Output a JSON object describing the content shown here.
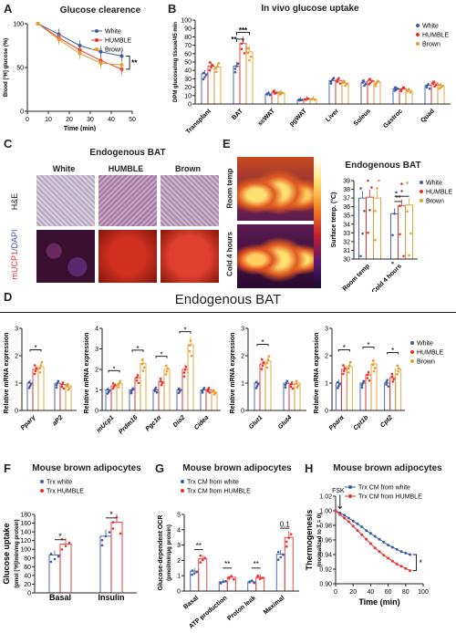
{
  "panels": {
    "A": {
      "label": "A",
      "title": "Glucose clearence",
      "ylabel": "Blood [³H] glucose (%)",
      "xlabel": "Time (min)",
      "legend": [
        "White",
        "HUMBLE",
        "Brown"
      ],
      "sig": "**"
    },
    "B": {
      "label": "B",
      "title": "In vivo glucose uptake",
      "ylabel": "DPM glucose/mg tissue/45 min",
      "legend": [
        "White",
        "HUMBLE",
        "Brown"
      ],
      "sig": [
        "***",
        "**"
      ]
    },
    "C": {
      "label": "C",
      "title": "Endogenous BAT",
      "cols": [
        "White",
        "HUMBLE",
        "Brown"
      ],
      "row1": "H&E",
      "row2a": "mUCP1",
      "row2b": "/DAPI"
    },
    "E": {
      "label": "E",
      "title": "Endogenous BAT",
      "row1": "Room temp",
      "row2": "Cold 4 hours",
      "cams": [
        "White",
        "HUMBLE",
        "Brown"
      ],
      "ylabel": "Surface temp. (°C)",
      "categories": [
        "Room temp",
        "Cold 4 hours"
      ],
      "legend": [
        "White",
        "HUMBLE",
        "Brown"
      ],
      "sig": [
        "*",
        "**"
      ]
    },
    "D": {
      "label": "D",
      "title": "Endogenous BAT",
      "ylabel": "Relative mRNA expression",
      "legend": [
        "White",
        "HUMBLE",
        "Brown"
      ],
      "groups": [
        {
          "genes": [
            "Pparγ",
            "aP2"
          ],
          "sig": [
            "*"
          ]
        },
        {
          "genes": [
            "mUcp1",
            "Prdm16",
            "Pgc1α",
            "Dio2",
            "Cidea"
          ],
          "sig": [
            "*",
            "*",
            "*",
            "*",
            "*",
            "*",
            "*",
            "*"
          ]
        },
        {
          "genes": [
            "Glut1",
            "Glut4"
          ],
          "sig": [
            "*",
            "*"
          ]
        },
        {
          "genes": [
            "Pparα",
            "Cpt1b",
            "Cpt2"
          ],
          "sig": [
            "*",
            "*",
            "*",
            "*",
            "*",
            "*"
          ]
        }
      ]
    },
    "F": {
      "label": "F",
      "title": "Mouse brown adipocytes",
      "legend": [
        "Trx white",
        "Trx HUMBLE"
      ],
      "ylabel1": "Glucose uptake",
      "ylabel2": "(pmol [³H]/min/mg protein)",
      "categories": [
        "Basal",
        "Insulin"
      ],
      "sig": [
        "*",
        "*"
      ]
    },
    "G": {
      "label": "G",
      "title": "Mouse brown adipocytes",
      "legend": [
        "Trx CM from white",
        "Trx CM from HUMBLE"
      ],
      "ylabel1": "Glucose-dependent OCR",
      "ylabel2": "(pmol/min/μg protein)",
      "categories": [
        "Basal",
        "ATP production",
        "Proton leak",
        "Maximal"
      ],
      "sig": [
        "**",
        "**",
        "**",
        "0.1"
      ]
    },
    "H": {
      "label": "H",
      "title": "Mouse brown adipocytes",
      "legend": [
        "Trx CM from white",
        "Trx CM from HUMBLE"
      ],
      "ylabel1": "Thermogenesis",
      "ylabel2": "(normalized to T = 0)",
      "xlabel": "Time (min)",
      "arrow": "FSK",
      "sig": "*"
    }
  },
  "colors": {
    "white": "#3b5ba5",
    "humble": "#e8322a",
    "brown": "#e0a030"
  },
  "chart_data": [
    {
      "type": "line",
      "panel": "A",
      "x": [
        5,
        15,
        25,
        35,
        45
      ],
      "series": [
        {
          "name": "White",
          "values": [
            100,
            88,
            75,
            68,
            63
          ]
        },
        {
          "name": "HUMBLE",
          "values": [
            100,
            84,
            70,
            58,
            48
          ]
        },
        {
          "name": "Brown",
          "values": [
            100,
            82,
            66,
            55,
            53
          ]
        }
      ],
      "xlim": [
        0,
        50
      ],
      "ylim": [
        0,
        100
      ],
      "xticks": [
        0,
        10,
        20,
        30,
        40,
        50
      ],
      "yticks": [
        0,
        50,
        100
      ]
    },
    {
      "type": "bar",
      "panel": "B",
      "categories": [
        "Transplant",
        "BAT",
        "scWAT",
        "pgWAT",
        "Liver",
        "Soleus",
        "Gastroc",
        "Quad"
      ],
      "series": [
        {
          "name": "White",
          "values": [
            36,
            45,
            12,
            5,
            28,
            26,
            18,
            22
          ]
        },
        {
          "name": "HUMBLE",
          "values": [
            45,
            72,
            14,
            6,
            28,
            28,
            18,
            25
          ]
        },
        {
          "name": "Brown",
          "values": [
            44,
            62,
            13,
            6,
            25,
            26,
            16,
            22
          ]
        }
      ],
      "ylim": [
        0,
        100
      ],
      "yticks": [
        0,
        10,
        20,
        30,
        40,
        50,
        60,
        70,
        80,
        90,
        100
      ]
    },
    {
      "type": "bar",
      "panel": "E",
      "categories": [
        "Room temp",
        "Cold 4 hours"
      ],
      "series": [
        {
          "name": "White",
          "values": [
            37,
            35.2
          ]
        },
        {
          "name": "HUMBLE",
          "values": [
            37.1,
            36.1
          ]
        },
        {
          "name": "Brown",
          "values": [
            37,
            36.2
          ]
        }
      ],
      "ylim": [
        30,
        39
      ],
      "yticks": [
        30,
        31,
        32,
        33,
        34,
        35,
        36,
        37,
        38,
        39
      ]
    },
    {
      "type": "bar",
      "panel": "D1",
      "categories": [
        "Pparγ",
        "aP2"
      ],
      "series": [
        {
          "name": "White",
          "values": [
            1.0,
            1.0
          ]
        },
        {
          "name": "HUMBLE",
          "values": [
            1.5,
            0.95
          ]
        },
        {
          "name": "Brown",
          "values": [
            1.6,
            0.9
          ]
        }
      ],
      "ylim": [
        0,
        3
      ],
      "yticks": [
        0,
        1,
        2,
        3
      ]
    },
    {
      "type": "bar",
      "panel": "D2",
      "categories": [
        "mUcp1",
        "Prdm16",
        "Pgc1α",
        "Dio2",
        "Cidea"
      ],
      "series": [
        {
          "name": "White",
          "values": [
            1.0,
            1.0,
            1.0,
            1.0,
            1.0
          ]
        },
        {
          "name": "HUMBLE",
          "values": [
            1.2,
            1.6,
            1.4,
            2.0,
            1.0
          ]
        },
        {
          "name": "Brown",
          "values": [
            1.3,
            2.3,
            2.0,
            3.2,
            0.9
          ]
        }
      ],
      "ylim": [
        0,
        4
      ],
      "yticks": [
        0,
        1,
        2,
        3,
        4
      ]
    },
    {
      "type": "bar",
      "panel": "D3",
      "categories": [
        "Glut1",
        "Glut4"
      ],
      "series": [
        {
          "name": "White",
          "values": [
            1.0,
            1.0
          ]
        },
        {
          "name": "HUMBLE",
          "values": [
            1.7,
            0.95
          ]
        },
        {
          "name": "Brown",
          "values": [
            1.8,
            1.0
          ]
        }
      ],
      "ylim": [
        0,
        3
      ],
      "yticks": [
        0,
        1,
        2,
        3
      ]
    },
    {
      "type": "bar",
      "panel": "D4",
      "categories": [
        "Pparα",
        "Cpt1b",
        "Cpt2"
      ],
      "series": [
        {
          "name": "White",
          "values": [
            1.0,
            1.0,
            1.0
          ]
        },
        {
          "name": "HUMBLE",
          "values": [
            1.5,
            1.3,
            1.2
          ]
        },
        {
          "name": "Brown",
          "values": [
            1.6,
            1.7,
            1.5
          ]
        }
      ],
      "ylim": [
        0,
        3
      ],
      "yticks": [
        0,
        1,
        2,
        3
      ]
    },
    {
      "type": "bar",
      "panel": "F",
      "categories": [
        "Basal",
        "Insulin"
      ],
      "series": [
        {
          "name": "Trx white",
          "values": [
            87,
            130
          ]
        },
        {
          "name": "Trx HUMBLE",
          "values": [
            112,
            162
          ]
        }
      ],
      "ylim": [
        0,
        180
      ],
      "yticks": [
        0,
        20,
        40,
        60,
        80,
        100,
        120,
        140,
        160,
        180
      ]
    },
    {
      "type": "bar",
      "panel": "G",
      "categories": [
        "Basal",
        "ATP production",
        "Proton leak",
        "Maximal"
      ],
      "series": [
        {
          "name": "Trx CM from white",
          "values": [
            1.3,
            0.6,
            0.6,
            2.4
          ]
        },
        {
          "name": "Trx CM from HUMBLE",
          "values": [
            2.1,
            0.9,
            0.9,
            3.5
          ]
        }
      ],
      "ylim": [
        0,
        5
      ],
      "yticks": [
        0,
        1,
        2,
        3,
        4,
        5
      ]
    },
    {
      "type": "line",
      "panel": "H",
      "x": [
        0,
        5,
        10,
        15,
        20,
        25,
        30,
        35,
        40,
        45,
        50,
        55,
        60,
        65,
        70,
        75,
        80,
        85
      ],
      "series": [
        {
          "name": "Trx CM from white",
          "values": [
            1.0,
            0.997,
            0.994,
            0.99,
            0.986,
            0.982,
            0.978,
            0.973,
            0.969,
            0.965,
            0.961,
            0.957,
            0.953,
            0.95,
            0.947,
            0.944,
            0.942,
            0.94
          ]
        },
        {
          "name": "Trx CM from HUMBLE",
          "values": [
            1.0,
            0.995,
            0.99,
            0.985,
            0.979,
            0.973,
            0.967,
            0.961,
            0.955,
            0.949,
            0.944,
            0.939,
            0.935,
            0.931,
            0.927,
            0.924,
            0.921,
            0.918
          ]
        }
      ],
      "xlim": [
        0,
        100
      ],
      "ylim": [
        0.9,
        1.02
      ],
      "xticks": [
        0,
        20,
        40,
        60,
        80,
        100
      ],
      "yticks": [
        0.9,
        0.92,
        0.94,
        0.96,
        0.98,
        1.0,
        1.02
      ]
    }
  ]
}
